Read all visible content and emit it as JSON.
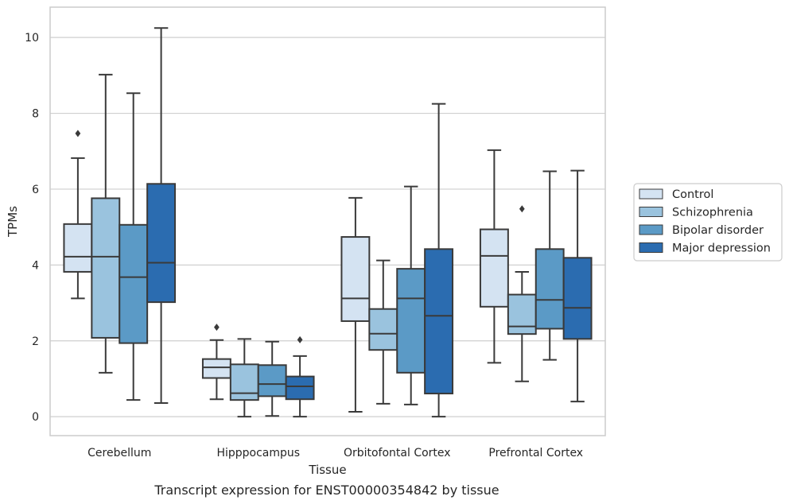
{
  "chart_data": {
    "type": "boxplot",
    "caption": "Transcript expression for ENST00000354842 by tissue",
    "xlabel": "Tissue",
    "ylabel": "TPMs",
    "ylim": [
      -0.5,
      10.8
    ],
    "yticks": [
      0,
      2,
      4,
      6,
      8,
      10
    ],
    "grid": "horizontal",
    "legend_placement": "right",
    "categories": [
      "Cerebellum",
      "Hipppocampus",
      "Orbitofontal Cortex",
      "Prefrontal Cortex"
    ],
    "series": [
      {
        "name": "Control",
        "color": "#d4e3f2",
        "boxes": [
          {
            "whislo": 3.12,
            "q1": 3.82,
            "med": 4.22,
            "q3": 5.08,
            "whishi": 6.82,
            "fliers": [
              7.47
            ]
          },
          {
            "whislo": 0.46,
            "q1": 1.02,
            "med": 1.3,
            "q3": 1.52,
            "whishi": 2.02,
            "fliers": [
              2.36
            ]
          },
          {
            "whislo": 0.13,
            "q1": 2.52,
            "med": 3.12,
            "q3": 4.74,
            "whishi": 5.77,
            "fliers": []
          },
          {
            "whislo": 1.42,
            "q1": 2.9,
            "med": 4.24,
            "q3": 4.94,
            "whishi": 7.03,
            "fliers": []
          }
        ]
      },
      {
        "name": "Schizophrenia",
        "color": "#9ac3de",
        "boxes": [
          {
            "whislo": 1.16,
            "q1": 2.08,
            "med": 4.22,
            "q3": 5.76,
            "whishi": 9.02,
            "fliers": []
          },
          {
            "whislo": 0.0,
            "q1": 0.44,
            "med": 0.62,
            "q3": 1.38,
            "whishi": 2.05,
            "fliers": []
          },
          {
            "whislo": 0.34,
            "q1": 1.76,
            "med": 2.19,
            "q3": 2.84,
            "whishi": 4.12,
            "fliers": []
          },
          {
            "whislo": 0.93,
            "q1": 2.18,
            "med": 2.38,
            "q3": 3.22,
            "whishi": 3.82,
            "fliers": [
              5.48
            ]
          }
        ]
      },
      {
        "name": "Bipolar disorder",
        "color": "#5b9ac6",
        "boxes": [
          {
            "whislo": 0.44,
            "q1": 1.94,
            "med": 3.68,
            "q3": 5.06,
            "whishi": 8.53,
            "fliers": []
          },
          {
            "whislo": 0.02,
            "q1": 0.54,
            "med": 0.86,
            "q3": 1.36,
            "whishi": 1.98,
            "fliers": []
          },
          {
            "whislo": 0.32,
            "q1": 1.16,
            "med": 3.12,
            "q3": 3.9,
            "whishi": 6.07,
            "fliers": []
          },
          {
            "whislo": 1.5,
            "q1": 2.32,
            "med": 3.08,
            "q3": 4.42,
            "whishi": 6.47,
            "fliers": []
          }
        ]
      },
      {
        "name": "Major depression",
        "color": "#2b6cb0",
        "boxes": [
          {
            "whislo": 0.36,
            "q1": 3.02,
            "med": 4.06,
            "q3": 6.14,
            "whishi": 10.25,
            "fliers": []
          },
          {
            "whislo": 0.0,
            "q1": 0.46,
            "med": 0.8,
            "q3": 1.06,
            "whishi": 1.6,
            "fliers": [
              2.03
            ]
          },
          {
            "whislo": 0.0,
            "q1": 0.61,
            "med": 2.66,
            "q3": 4.42,
            "whishi": 8.25,
            "fliers": []
          },
          {
            "whislo": 0.4,
            "q1": 2.05,
            "med": 2.87,
            "q3": 4.19,
            "whishi": 6.49,
            "fliers": []
          }
        ]
      }
    ]
  },
  "colors": {
    "edge": "#3a3a3a",
    "grid": "#cfcfcf",
    "frame": "#cccccc",
    "text": "#262626"
  }
}
